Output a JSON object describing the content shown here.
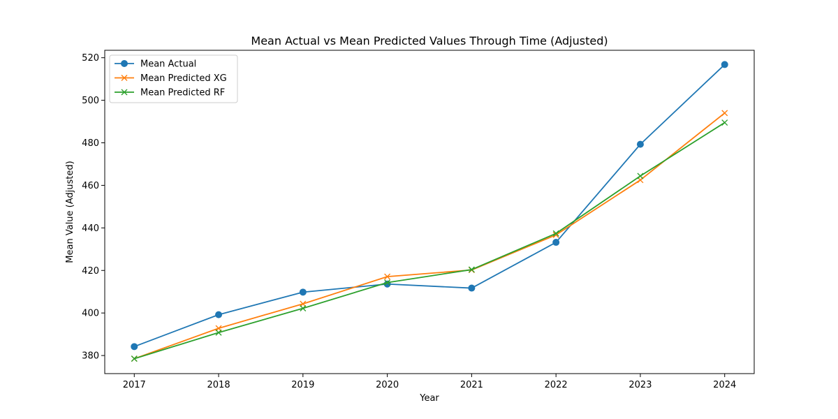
{
  "chart_data": {
    "type": "line",
    "title": "Mean Actual vs Mean Predicted Values Through Time (Adjusted)",
    "xlabel": "Year",
    "ylabel": "Mean Value (Adjusted)",
    "x": [
      2017,
      2018,
      2019,
      2020,
      2021,
      2022,
      2023,
      2024
    ],
    "xlim": [
      2016.65,
      2024.35
    ],
    "ylim": [
      371.5,
      523.5
    ],
    "yticks": [
      380,
      400,
      420,
      440,
      460,
      480,
      500,
      520
    ],
    "grid": false,
    "legend_position": "top-left",
    "series": [
      {
        "name": "Mean Actual",
        "color": "#1f77b4",
        "marker": "circle",
        "values": [
          384.2,
          399.2,
          409.8,
          413.6,
          411.7,
          433.2,
          479.3,
          516.8
        ]
      },
      {
        "name": "Mean Predicted XG",
        "color": "#ff7f0e",
        "marker": "x",
        "values": [
          378.5,
          392.8,
          404.3,
          417.1,
          420.2,
          436.7,
          462.5,
          494.0
        ]
      },
      {
        "name": "Mean Predicted RF",
        "color": "#2ca02c",
        "marker": "x",
        "values": [
          378.5,
          390.8,
          402.2,
          414.3,
          420.4,
          437.4,
          464.4,
          489.5
        ]
      }
    ]
  }
}
